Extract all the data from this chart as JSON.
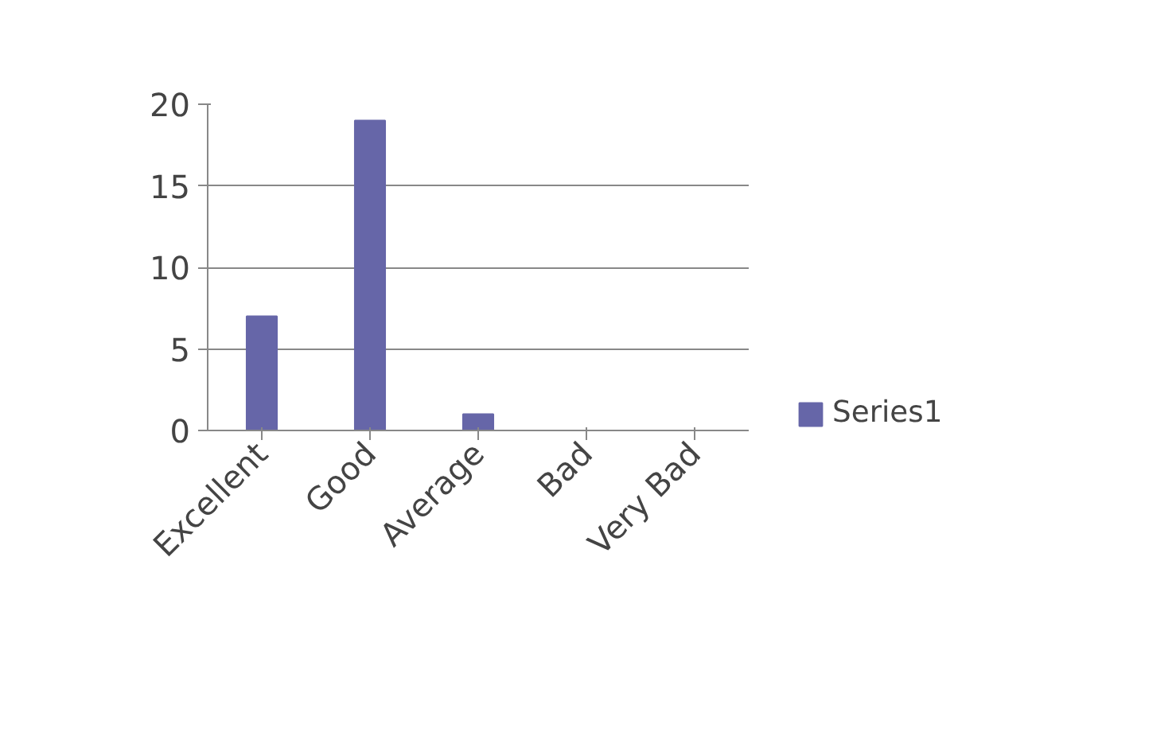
{
  "chart_data": {
    "type": "bar",
    "categories": [
      "Excellent",
      "Good",
      "Average",
      "Bad",
      "Very Bad"
    ],
    "series": [
      {
        "name": "Series1",
        "color": "#6666a8",
        "values": [
          7,
          19,
          1,
          0,
          0
        ]
      }
    ],
    "ylim": [
      0,
      20
    ],
    "yticks": [
      0,
      5,
      10,
      15,
      20
    ],
    "grid": "y",
    "legend": "right"
  }
}
